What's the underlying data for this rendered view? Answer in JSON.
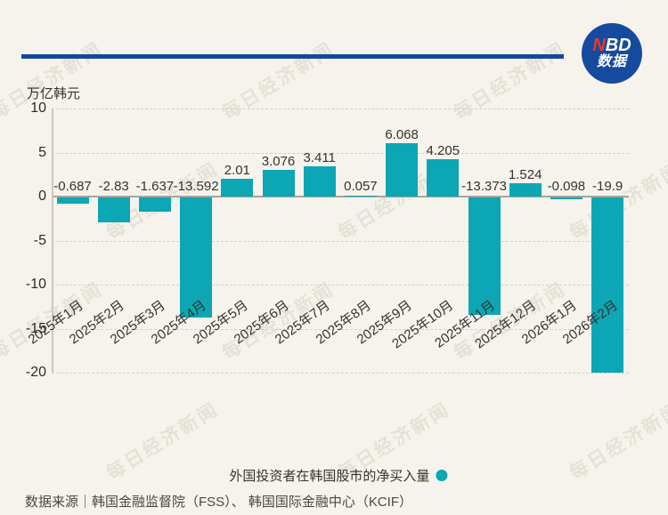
{
  "brand": {
    "name_red_part": "N",
    "name_white_part": "BD",
    "subtitle": "数据",
    "circle_color": "#164a9e",
    "accent_red": "#e8382d"
  },
  "header": {
    "rule_color": "#10499e"
  },
  "watermark": {
    "text": "每日经济新闻"
  },
  "chart_data": {
    "type": "bar",
    "unit_label": "万亿韩元",
    "categories": [
      "2025年1月",
      "2025年2月",
      "2025年3月",
      "2025年4月",
      "2025年5月",
      "2025年6月",
      "2025年7月",
      "2025年8月",
      "2025年9月",
      "2025年10月",
      "2025年11月",
      "2025年12月",
      "2026年1月",
      "2026年2月"
    ],
    "values": [
      -0.687,
      -2.83,
      -1.637,
      -13.592,
      2.01,
      3.076,
      3.411,
      0.057,
      6.068,
      4.205,
      -13.373,
      1.524,
      -0.098,
      -19.9
    ],
    "value_labels": [
      "-0.687",
      "-2.83",
      "-1.637",
      "-13.592",
      "2.01",
      "3.076",
      "3.411",
      "0.057",
      "6.068",
      "4.205",
      "-13.373",
      "1.524",
      "-0.098",
      "-19.9"
    ],
    "y_ticks": [
      10,
      5,
      0,
      -5,
      -10,
      -15,
      -20
    ],
    "ylim": [
      -20,
      10
    ],
    "grid": "horizontal-dashed",
    "bar_color": "#0da6b4",
    "legend": {
      "label": "外国投资者在韩国股市的净买入量",
      "marker_color": "#0da6b4",
      "position": "bottom-center"
    }
  },
  "footer": {
    "source": "数据来源｜韩国金融监督院（FSS）、 韩国国际金融中心（KCIF）"
  }
}
